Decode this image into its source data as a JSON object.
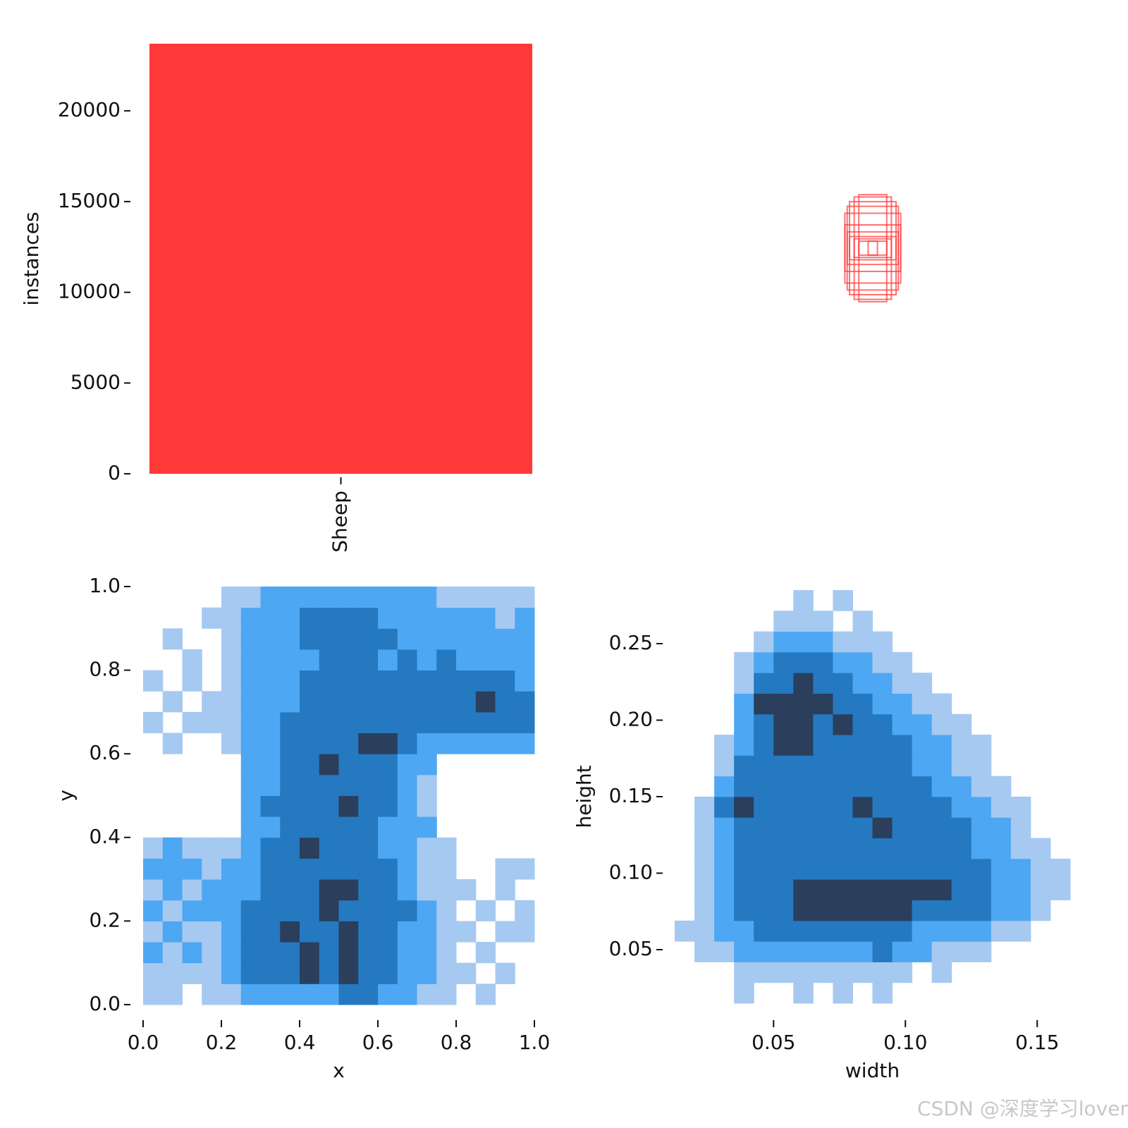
{
  "chart_data": [
    {
      "type": "bar",
      "categories": [
        "Sheep"
      ],
      "values": [
        23700
      ],
      "color": "#ff3838",
      "ylabel": "instances",
      "ylim": [
        0,
        23700
      ],
      "yticks": [
        0,
        5000,
        10000,
        15000,
        20000
      ]
    },
    {
      "type": "boxes",
      "color": "#ff3838",
      "widths": [
        0.06,
        0.08,
        0.1,
        0.11,
        0.12,
        0.12,
        0.11,
        0.1,
        0.08,
        0.06,
        0.02
      ],
      "heights": [
        0.23,
        0.22,
        0.2,
        0.18,
        0.15,
        0.1,
        0.07,
        0.05,
        0.04,
        0.03,
        0.03
      ]
    },
    {
      "type": "hist2d",
      "xlabel": "x",
      "ylabel": "y",
      "cmap": [
        "#a6c9f1",
        "#2196f3",
        "#2b3e5c"
      ],
      "xlim": [
        0,
        1
      ],
      "ylim": [
        0,
        1
      ],
      "xticks": [
        {
          "value": 0,
          "label": "0.0"
        },
        0.2,
        0.4,
        0.6,
        0.8,
        {
          "value": 1,
          "label": "1.0"
        }
      ],
      "yticks": [
        {
          "value": 0,
          "label": "0.0"
        },
        0.2,
        0.4,
        0.6,
        0.8,
        {
          "value": 1,
          "label": "1.0"
        }
      ],
      "xbins": [
        0,
        0.05,
        0.1,
        0.15,
        0.2,
        0.25,
        0.3,
        0.35,
        0.4,
        0.45,
        0.5,
        0.55,
        0.6,
        0.65,
        0.7,
        0.75,
        0.8,
        0.85,
        0.9,
        0.95,
        1
      ],
      "ybins": [
        0,
        0.05,
        0.1,
        0.15,
        0.2,
        0.25,
        0.3,
        0.35,
        0.4,
        0.45,
        0.5,
        0.55,
        0.6,
        0.65,
        0.7,
        0.75,
        0.8,
        0.85,
        0.9,
        0.95,
        1
      ],
      "counts": [
        [
          1,
          1,
          0,
          1,
          1,
          2,
          2,
          2,
          2,
          2,
          3,
          3,
          2,
          2,
          1,
          1,
          0,
          1,
          0,
          0
        ],
        [
          1,
          1,
          1,
          1,
          2,
          3,
          3,
          3,
          4,
          3,
          4,
          3,
          3,
          2,
          2,
          1,
          1,
          0,
          1,
          0
        ],
        [
          2,
          1,
          2,
          1,
          2,
          3,
          3,
          3,
          4,
          3,
          4,
          3,
          3,
          2,
          2,
          1,
          0,
          1,
          0,
          0
        ],
        [
          1,
          2,
          1,
          1,
          2,
          3,
          3,
          4,
          3,
          3,
          4,
          3,
          3,
          2,
          2,
          1,
          1,
          0,
          1,
          1
        ],
        [
          2,
          1,
          2,
          2,
          2,
          3,
          3,
          3,
          3,
          4,
          3,
          3,
          3,
          3,
          2,
          1,
          0,
          1,
          0,
          1
        ],
        [
          1,
          2,
          1,
          2,
          2,
          2,
          3,
          3,
          3,
          4,
          4,
          3,
          3,
          2,
          1,
          1,
          1,
          0,
          1,
          0
        ],
        [
          2,
          2,
          2,
          1,
          2,
          2,
          3,
          3,
          3,
          3,
          3,
          3,
          3,
          2,
          1,
          1,
          0,
          0,
          1,
          1
        ],
        [
          1,
          2,
          1,
          1,
          1,
          2,
          3,
          3,
          4,
          3,
          3,
          3,
          2,
          2,
          1,
          1,
          0,
          0,
          0,
          0
        ],
        [
          0,
          0,
          0,
          0,
          0,
          2,
          2,
          3,
          3,
          3,
          3,
          3,
          2,
          2,
          2,
          0,
          0,
          0,
          0,
          0
        ],
        [
          0,
          0,
          0,
          0,
          0,
          2,
          3,
          3,
          3,
          3,
          4,
          3,
          3,
          2,
          1,
          0,
          0,
          0,
          0,
          0
        ],
        [
          0,
          0,
          0,
          0,
          0,
          2,
          2,
          3,
          3,
          3,
          3,
          3,
          3,
          2,
          1,
          0,
          0,
          0,
          0,
          0
        ],
        [
          0,
          0,
          0,
          0,
          0,
          2,
          2,
          3,
          3,
          4,
          3,
          3,
          3,
          2,
          2,
          0,
          0,
          0,
          0,
          0
        ],
        [
          0,
          1,
          0,
          0,
          1,
          2,
          2,
          3,
          3,
          3,
          3,
          4,
          4,
          3,
          2,
          2,
          2,
          2,
          2,
          2
        ],
        [
          1,
          0,
          1,
          1,
          1,
          2,
          2,
          3,
          3,
          3,
          3,
          3,
          3,
          3,
          3,
          3,
          3,
          3,
          3,
          3
        ],
        [
          0,
          1,
          0,
          1,
          1,
          2,
          2,
          2,
          3,
          3,
          3,
          3,
          3,
          3,
          3,
          3,
          3,
          4,
          3,
          3
        ],
        [
          1,
          0,
          1,
          0,
          1,
          2,
          2,
          2,
          3,
          3,
          3,
          3,
          3,
          3,
          3,
          3,
          3,
          3,
          3,
          2
        ],
        [
          0,
          0,
          1,
          0,
          1,
          2,
          2,
          2,
          2,
          3,
          3,
          3,
          2,
          3,
          2,
          3,
          2,
          2,
          2,
          2
        ],
        [
          0,
          1,
          0,
          0,
          1,
          2,
          2,
          2,
          3,
          3,
          3,
          3,
          3,
          2,
          2,
          2,
          2,
          2,
          2,
          2
        ],
        [
          0,
          0,
          0,
          1,
          1,
          2,
          2,
          2,
          3,
          3,
          3,
          3,
          2,
          2,
          2,
          2,
          2,
          2,
          1,
          2
        ],
        [
          0,
          0,
          0,
          0,
          1,
          1,
          2,
          2,
          2,
          2,
          2,
          2,
          2,
          2,
          2,
          1,
          1,
          1,
          1,
          1
        ]
      ]
    },
    {
      "type": "hist2d",
      "xlabel": "width",
      "ylabel": "height",
      "cmap": [
        "#a6c9f1",
        "#2196f3",
        "#2b3e5c"
      ],
      "xlim": [
        0.0125,
        0.1625
      ],
      "ylim": [
        0.015,
        0.285
      ],
      "xticks": [
        0.05,
        {
          "value": 0.1,
          "label": "0.10"
        },
        0.15
      ],
      "yticks": [
        0.05,
        {
          "value": 0.1,
          "label": "0.10"
        },
        0.15,
        {
          "value": 0.2,
          "label": "0.20"
        },
        0.25
      ],
      "xbins": [
        0.0125,
        0.02,
        0.0275,
        0.035,
        0.0425,
        0.05,
        0.0575,
        0.065,
        0.0725,
        0.08,
        0.0875,
        0.095,
        0.1025,
        0.11,
        0.1175,
        0.125,
        0.1325,
        0.14,
        0.1475,
        0.155,
        0.1625
      ],
      "ybins": [
        0.015,
        0.0285,
        0.042,
        0.0555,
        0.069,
        0.0825,
        0.096,
        0.1095,
        0.123,
        0.1365,
        0.15,
        0.1635,
        0.177,
        0.1905,
        0.204,
        0.2175,
        0.231,
        0.2445,
        0.258,
        0.2715,
        0.285
      ],
      "counts": [
        [
          0,
          0,
          0,
          1,
          0,
          0,
          1,
          0,
          1,
          0,
          1,
          0,
          0,
          0,
          0,
          0,
          0,
          0,
          0,
          0
        ],
        [
          0,
          0,
          0,
          1,
          1,
          1,
          1,
          1,
          1,
          1,
          1,
          1,
          0,
          1,
          0,
          0,
          0,
          0,
          0,
          0
        ],
        [
          0,
          1,
          1,
          2,
          2,
          2,
          2,
          2,
          2,
          2,
          3,
          2,
          2,
          1,
          1,
          1,
          0,
          0,
          0,
          0
        ],
        [
          1,
          1,
          2,
          2,
          3,
          3,
          3,
          3,
          3,
          3,
          3,
          3,
          2,
          2,
          2,
          2,
          1,
          1,
          0,
          0
        ],
        [
          0,
          1,
          2,
          3,
          3,
          3,
          4,
          4,
          4,
          4,
          4,
          4,
          3,
          3,
          3,
          3,
          2,
          2,
          1,
          0
        ],
        [
          0,
          1,
          2,
          3,
          3,
          3,
          4,
          4,
          4,
          4,
          4,
          4,
          4,
          4,
          3,
          3,
          2,
          2,
          1,
          1
        ],
        [
          0,
          1,
          2,
          3,
          3,
          3,
          3,
          3,
          3,
          3,
          3,
          3,
          3,
          3,
          3,
          3,
          2,
          2,
          1,
          1
        ],
        [
          0,
          1,
          2,
          3,
          3,
          3,
          3,
          3,
          3,
          3,
          3,
          3,
          3,
          3,
          3,
          2,
          2,
          1,
          1,
          0
        ],
        [
          0,
          1,
          2,
          3,
          3,
          3,
          3,
          3,
          3,
          3,
          4,
          3,
          3,
          3,
          3,
          2,
          2,
          1,
          0,
          0
        ],
        [
          0,
          1,
          3,
          4,
          3,
          3,
          3,
          3,
          3,
          4,
          3,
          3,
          3,
          3,
          2,
          2,
          1,
          1,
          0,
          0
        ],
        [
          0,
          0,
          2,
          3,
          3,
          3,
          3,
          3,
          3,
          3,
          3,
          3,
          3,
          2,
          2,
          1,
          1,
          0,
          0,
          0
        ],
        [
          0,
          0,
          1,
          3,
          3,
          3,
          3,
          3,
          3,
          3,
          3,
          3,
          2,
          2,
          1,
          1,
          0,
          0,
          0,
          0
        ],
        [
          0,
          0,
          1,
          2,
          3,
          4,
          4,
          3,
          3,
          3,
          3,
          3,
          2,
          2,
          1,
          1,
          0,
          0,
          0,
          0
        ],
        [
          0,
          0,
          0,
          2,
          3,
          4,
          4,
          3,
          4,
          3,
          3,
          2,
          2,
          1,
          1,
          0,
          0,
          0,
          0,
          0
        ],
        [
          0,
          0,
          0,
          2,
          4,
          4,
          4,
          4,
          3,
          3,
          2,
          2,
          1,
          1,
          0,
          0,
          0,
          0,
          0,
          0
        ],
        [
          0,
          0,
          0,
          1,
          3,
          3,
          4,
          3,
          3,
          2,
          2,
          1,
          1,
          0,
          0,
          0,
          0,
          0,
          0,
          0
        ],
        [
          0,
          0,
          0,
          1,
          2,
          3,
          3,
          3,
          2,
          2,
          1,
          1,
          0,
          0,
          0,
          0,
          0,
          0,
          0,
          0
        ],
        [
          0,
          0,
          0,
          0,
          1,
          2,
          2,
          2,
          1,
          1,
          1,
          0,
          0,
          0,
          0,
          0,
          0,
          0,
          0,
          0
        ],
        [
          0,
          0,
          0,
          0,
          0,
          1,
          1,
          1,
          0,
          1,
          0,
          0,
          0,
          0,
          0,
          0,
          0,
          0,
          0,
          0
        ],
        [
          0,
          0,
          0,
          0,
          0,
          0,
          1,
          0,
          1,
          0,
          0,
          0,
          0,
          0,
          0,
          0,
          0,
          0,
          0,
          0
        ]
      ]
    }
  ],
  "watermark": "CSDN @深度学习lover"
}
